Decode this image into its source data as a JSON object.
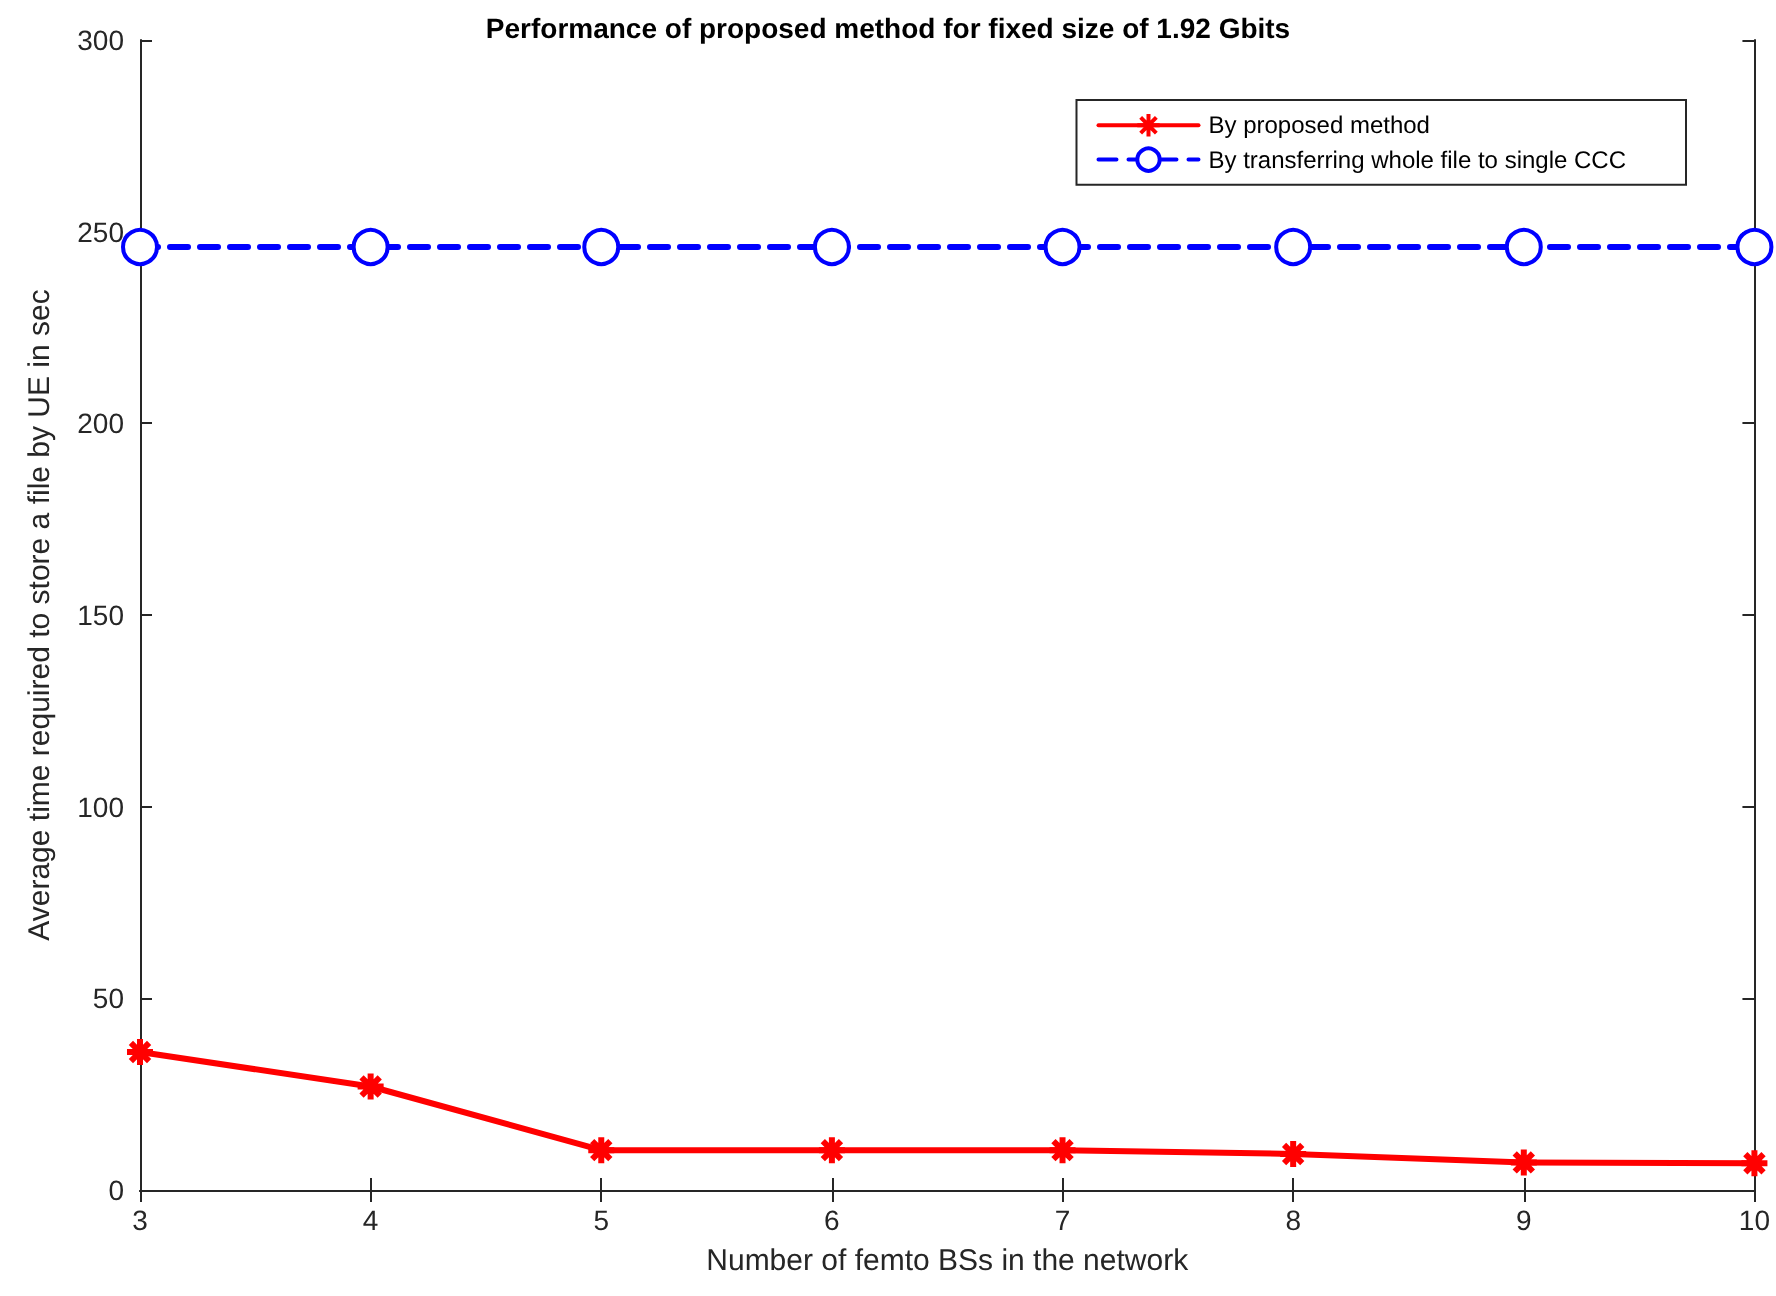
{
  "chart_data": {
    "type": "line",
    "title": "Performance of proposed method for fixed size of 1.92 Gbits",
    "xlabel": "Number of femto BSs in the network",
    "ylabel": "Average time required to store a file by UE in sec",
    "x": [
      3,
      4,
      5,
      6,
      7,
      8,
      9,
      10
    ],
    "series": [
      {
        "name": "By proposed method",
        "color": "#ff0000",
        "marker": "cross",
        "line_style": "solid",
        "values": [
          36,
          27,
          10.4,
          10.4,
          10.4,
          9.4,
          7.2,
          7
        ]
      },
      {
        "name": "By transferring whole file to single CCC",
        "color": "#0000ff",
        "marker": "circle",
        "line_style": "dashed",
        "values": [
          246,
          246,
          246,
          246,
          246,
          246,
          246,
          246
        ]
      }
    ],
    "xlim": [
      3,
      10
    ],
    "xticks": [
      3,
      4,
      5,
      6,
      7,
      8,
      9,
      10
    ],
    "ylim": [
      0,
      300
    ],
    "yticks": [
      0,
      50,
      100,
      150,
      200,
      250,
      300
    ],
    "grid": false,
    "legend": "top right"
  }
}
